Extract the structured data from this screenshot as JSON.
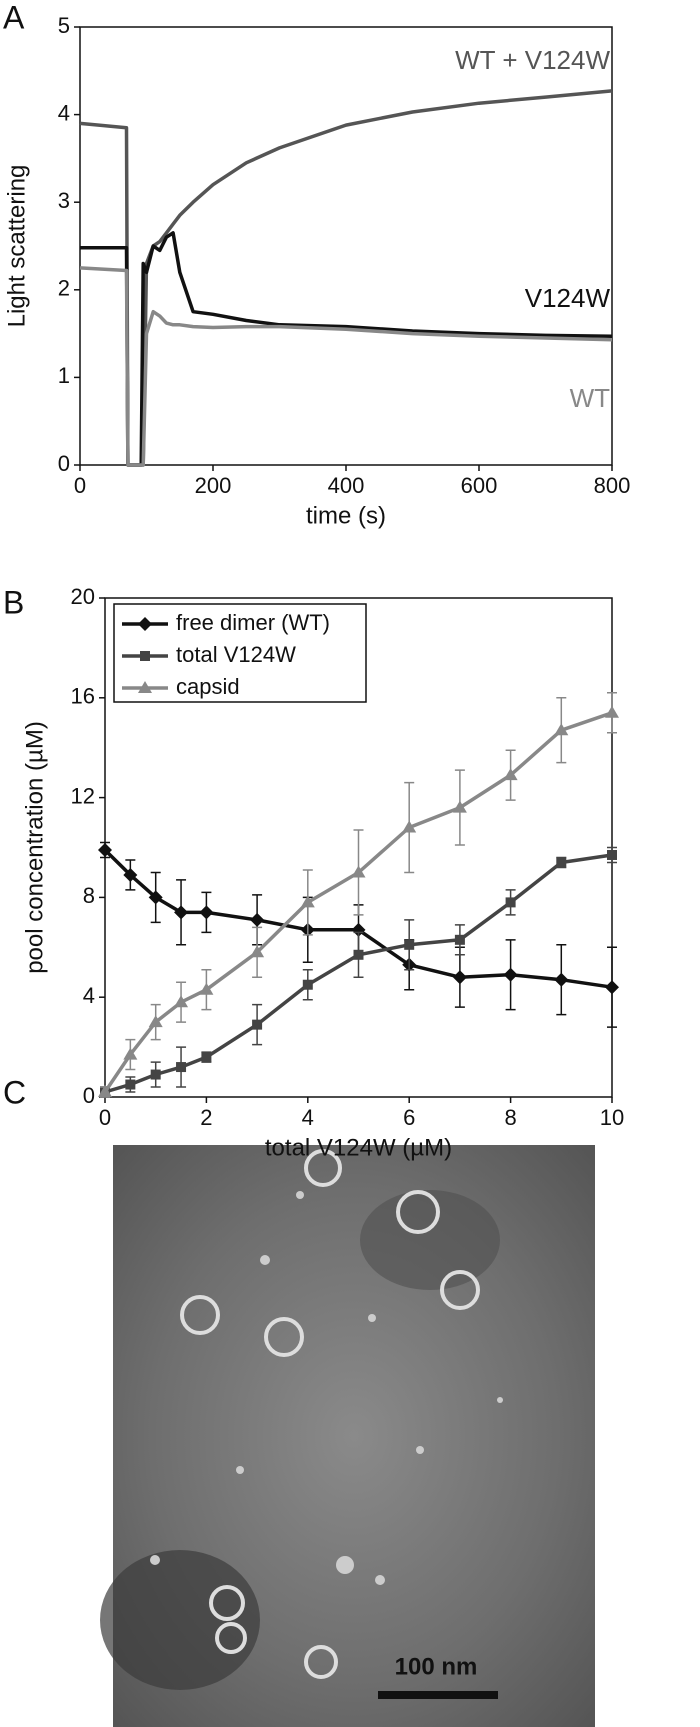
{
  "chart_data": [
    {
      "type": "line",
      "panel": "A",
      "x_label": "time (s)",
      "y_label": "Light scattering",
      "x": [
        0,
        70,
        72,
        92,
        95,
        100,
        110,
        120,
        130,
        140,
        150,
        170,
        200,
        250,
        300,
        400,
        500,
        600,
        700,
        800
      ],
      "series": [
        {
          "name": "WT + V124W",
          "color": "#555555",
          "values": [
            3.9,
            3.85,
            0,
            0,
            0,
            2.3,
            2.5,
            2.55,
            2.65,
            2.75,
            2.85,
            3.0,
            3.2,
            3.45,
            3.62,
            3.88,
            4.03,
            4.13,
            4.2,
            4.27
          ]
        },
        {
          "name": "V124W",
          "color": "#111111",
          "values": [
            2.48,
            2.48,
            0,
            0,
            2.3,
            2.2,
            2.5,
            2.45,
            2.6,
            2.65,
            2.2,
            1.75,
            1.72,
            1.65,
            1.6,
            1.58,
            1.53,
            1.5,
            1.48,
            1.47
          ]
        },
        {
          "name": "WT",
          "color": "#888888",
          "values": [
            2.25,
            2.22,
            0,
            0,
            0,
            1.5,
            1.75,
            1.7,
            1.62,
            1.6,
            1.6,
            1.58,
            1.57,
            1.58,
            1.58,
            1.55,
            1.5,
            1.47,
            1.45,
            1.43
          ]
        }
      ],
      "xlim": [
        0,
        800
      ],
      "xticks": [
        0,
        200,
        400,
        600,
        800
      ],
      "ylim": [
        0,
        5
      ],
      "yticks": [
        0,
        1,
        2,
        3,
        4,
        5
      ]
    },
    {
      "type": "errorline",
      "panel": "B",
      "x_label": "total V124W (µM)",
      "y_label": "pool concentration (µM)",
      "x": [
        0,
        0.5,
        1,
        1.5,
        2,
        3,
        4,
        5,
        6,
        7,
        8,
        9,
        10
      ],
      "series": [
        {
          "name": "free dimer (WT)",
          "color": "#111111",
          "marker": "diamond",
          "values": [
            9.9,
            8.9,
            8.0,
            7.4,
            7.4,
            7.1,
            6.7,
            6.7,
            5.3,
            4.8,
            4.9,
            4.7,
            4.4
          ],
          "errors": [
            0.3,
            0.6,
            1.0,
            1.3,
            0.8,
            1.0,
            1.3,
            1.0,
            1.0,
            1.2,
            1.4,
            1.4,
            1.6
          ]
        },
        {
          "name": "total V124W",
          "color": "#444444",
          "marker": "square",
          "values": [
            0.2,
            0.5,
            0.9,
            1.2,
            1.6,
            2.9,
            4.5,
            5.7,
            6.1,
            6.3,
            7.8,
            9.4,
            9.7
          ],
          "errors": [
            0.2,
            0.3,
            0.5,
            0.8,
            0.2,
            0.8,
            0.6,
            0.9,
            1.0,
            0.6,
            0.5,
            0.2,
            0.3
          ]
        },
        {
          "name": "capsid",
          "color": "#888888",
          "marker": "triangle",
          "values": [
            0.2,
            1.7,
            3.0,
            3.8,
            4.3,
            5.8,
            7.8,
            9.0,
            10.8,
            11.6,
            12.9,
            14.7,
            15.4
          ],
          "errors": [
            0.2,
            0.6,
            0.7,
            0.8,
            0.8,
            1.0,
            1.3,
            1.7,
            1.8,
            1.5,
            1.0,
            1.3,
            0.8
          ]
        }
      ],
      "xlim": [
        0,
        10
      ],
      "xticks": [
        0,
        2,
        4,
        6,
        8,
        10
      ],
      "ylim": [
        0,
        20
      ],
      "yticks": [
        0,
        4,
        8,
        12,
        16,
        20
      ]
    }
  ],
  "image_panel": {
    "panel": "C",
    "scale_bar": "100 nm"
  }
}
